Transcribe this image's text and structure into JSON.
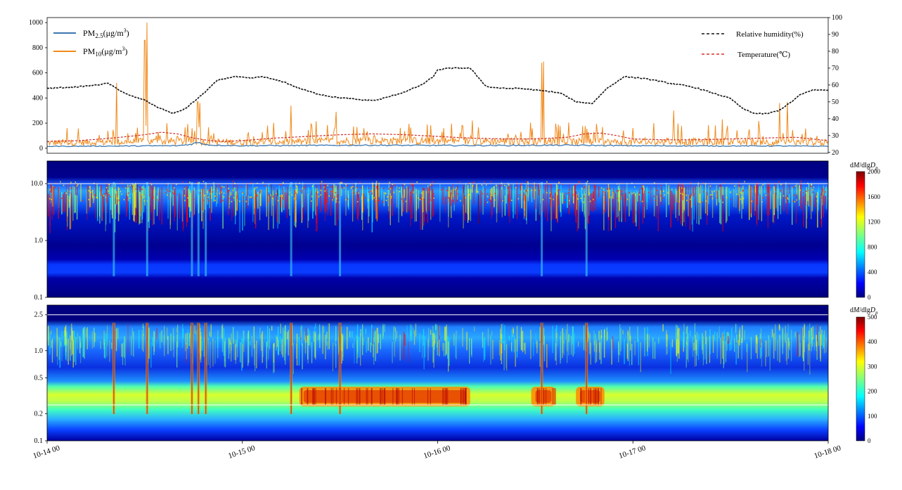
{
  "chart_data": [
    {
      "type": "line",
      "panel": "top",
      "left_axis": {
        "ylim": [
          -40,
          1040
        ],
        "ticks": [
          0,
          200,
          400,
          600,
          800,
          1000
        ]
      },
      "right_axis": {
        "ylim": [
          19.5,
          100
        ],
        "ticks": [
          20,
          30,
          40,
          50,
          60,
          70,
          80,
          90,
          100
        ]
      },
      "x_range_hours": [
        0,
        96
      ],
      "legend_left": [
        {
          "id": "pm25",
          "main": "PM",
          "sub": "2.5",
          "unit_pre": "(μg/m",
          "sup": "3",
          "unit_post": ")",
          "color": "#3b77b0",
          "style": "solid"
        },
        {
          "id": "pm10",
          "main": "PM",
          "sub": "10",
          "unit_pre": "(μg/m",
          "sup": "3",
          "unit_post": ")",
          "color": "#f08a1c",
          "style": "solid"
        }
      ],
      "legend_right": [
        {
          "id": "rh",
          "label": "Relative humidity(%)",
          "color": "#111111",
          "style": "dashed"
        },
        {
          "id": "temp",
          "label": "Temperature(℃)",
          "color": "#d0312d",
          "style": "dashed"
        }
      ],
      "series": {
        "rh": {
          "axis": "right",
          "x": [
            0,
            2,
            4,
            6,
            7.5,
            8.5,
            10,
            12,
            13.5,
            15.5,
            17,
            19,
            21,
            23,
            25,
            26.5,
            28,
            29,
            31,
            33,
            35,
            37,
            39,
            40.5,
            42,
            44,
            46,
            47.5,
            48,
            49.5,
            52,
            54,
            56,
            58,
            60,
            62,
            63.2,
            65,
            67,
            68.8,
            71,
            73,
            74.5,
            75.5,
            76.5,
            78,
            80,
            82,
            84,
            85.5,
            87,
            88.5,
            90,
            91.5,
            92.5,
            94,
            96
          ],
          "values": [
            58,
            58.5,
            59,
            60,
            61,
            58,
            54,
            51,
            47,
            43,
            46,
            54,
            63,
            65,
            64,
            65,
            63,
            62,
            58,
            55,
            53,
            52,
            51,
            51,
            53,
            56,
            60,
            65,
            69,
            70,
            70,
            59,
            58,
            58,
            57,
            56,
            55,
            50,
            49,
            58,
            65,
            64,
            63,
            62,
            61,
            60,
            58,
            55,
            52,
            46,
            43,
            43,
            45,
            50,
            54,
            57,
            57
          ]
        },
        "temp": {
          "axis": "right",
          "x": [
            0,
            4,
            8,
            12,
            14,
            16,
            18,
            20,
            22,
            24,
            28,
            32,
            36,
            40,
            44,
            48,
            52,
            56,
            60,
            64,
            66,
            68,
            70,
            72,
            76,
            80,
            84,
            88,
            92,
            96
          ],
          "values": [
            26.5,
            27,
            28.5,
            30.5,
            32,
            31,
            28.5,
            27,
            26.5,
            27,
            28.5,
            29.5,
            30.5,
            31,
            30.5,
            29.5,
            28.5,
            28,
            28,
            29,
            31,
            31.5,
            30,
            28,
            27.5,
            27.5,
            28,
            28.5,
            29,
            27
          ]
        },
        "pm10_baseline": {
          "axis": "left",
          "x": [
            0,
            8,
            16,
            24,
            32,
            40,
            48,
            56,
            64,
            72,
            80,
            88,
            96
          ],
          "values": [
            55,
            60,
            70,
            60,
            65,
            75,
            70,
            70,
            65,
            60,
            65,
            60,
            55
          ]
        },
        "pm10_spikes": {
          "axis": "left",
          "x": [
            8.5,
            12,
            12.3,
            18.5,
            18.8,
            30,
            35.5,
            60.8,
            61,
            77,
            83,
            90,
            91
          ],
          "values": [
            520,
            860,
            1000,
            370,
            360,
            340,
            290,
            680,
            690,
            300,
            230,
            360,
            370
          ]
        },
        "pm25_baseline": {
          "axis": "left",
          "x": [
            0,
            8,
            16,
            17.5,
            18.5,
            20,
            24,
            32,
            40,
            48,
            56,
            64,
            72,
            80,
            88,
            96
          ],
          "values": [
            15,
            17,
            20,
            30,
            45,
            25,
            20,
            22,
            24,
            22,
            22,
            24,
            20,
            18,
            18,
            16
          ]
        }
      }
    },
    {
      "type": "heatmap",
      "panel": "middle",
      "colorbar": {
        "label_pre": "d",
        "label_italic": "M",
        "label_mid": "/dlg",
        "label_italic2": "D",
        "label_sub": "p",
        "ticks": [
          0,
          400,
          800,
          1200,
          1600,
          2000
        ],
        "range": [
          0,
          2000
        ]
      },
      "y_log_range": [
        0.1,
        25
      ],
      "y_ticks": [
        {
          "v": 10,
          "label": "10.0"
        },
        {
          "v": 1,
          "label": "1.0"
        },
        {
          "v": 0.1,
          "label": "0.1"
        }
      ],
      "reference_lines": [
        10
      ],
      "events_hours": [
        8.2,
        12.3,
        17.8,
        18.6,
        19.5,
        30,
        36,
        60.8,
        66.3
      ]
    },
    {
      "type": "heatmap",
      "panel": "bottom",
      "colorbar": {
        "label_pre": "d",
        "label_italic": "M",
        "label_mid": "/dlg",
        "label_italic2": "D",
        "label_sub": "p",
        "ticks": [
          0,
          100,
          200,
          300,
          400,
          500
        ],
        "range": [
          0,
          500
        ]
      },
      "y_log_range": [
        0.1,
        3.2
      ],
      "y_ticks": [
        {
          "v": 2.5,
          "label": "2.5"
        },
        {
          "v": 1.0,
          "label": "1.0"
        },
        {
          "v": 0.5,
          "label": "0.5"
        },
        {
          "v": 0.2,
          "label": "0.2"
        },
        {
          "v": 0.1,
          "label": "0.1"
        }
      ],
      "reference_lines": [
        2.5,
        0.25
      ],
      "hot_intervals_hours": [
        [
          31,
          52
        ],
        [
          59.5,
          62.5
        ],
        [
          65,
          68.5
        ]
      ],
      "events_hours": [
        8.2,
        12.3,
        17.8,
        18.6,
        19.5,
        30,
        36,
        60.8,
        66.3
      ]
    }
  ],
  "x_axis": {
    "ticks": [
      {
        "h": 0,
        "label": "10-14 00"
      },
      {
        "h": 24,
        "label": "10-15 00"
      },
      {
        "h": 48,
        "label": "10-16 00"
      },
      {
        "h": 72,
        "label": "10-17 00"
      },
      {
        "h": 96,
        "label": "10-18 00"
      }
    ]
  }
}
